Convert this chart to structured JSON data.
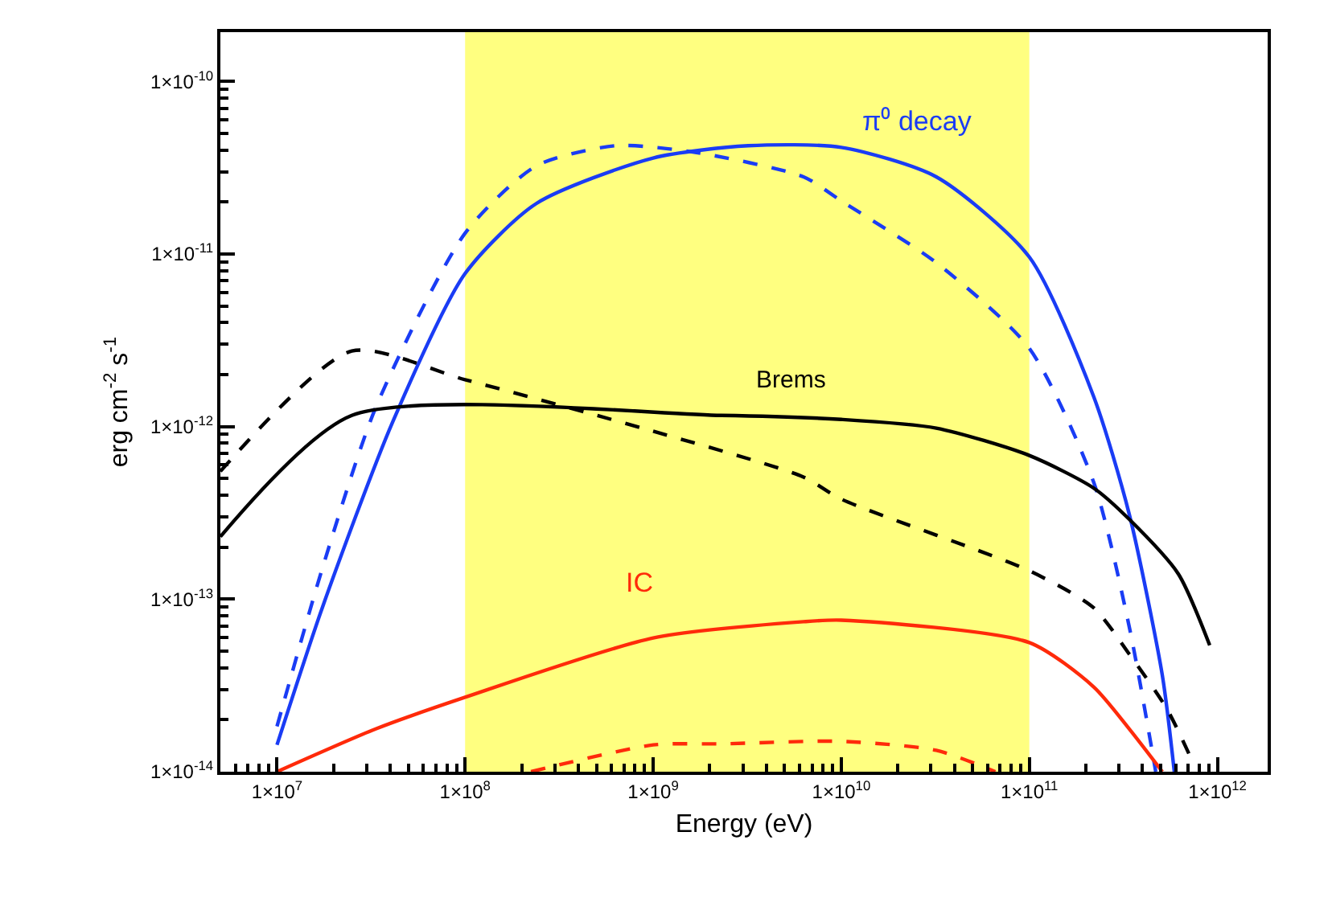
{
  "chart_data": {
    "type": "line",
    "xlabel": "Energy (eV)",
    "ylabel": "erg cm$^{-2}$ s$^{-1}$",
    "log": "xy",
    "grid": false,
    "legend": false,
    "marker": "none",
    "xlim": [
      5000000.0,
      1850000000000.0
    ],
    "ylim": [
      1e-14,
      1.93e-10
    ],
    "xticks": [
      {
        "value": 10000000.0,
        "label": "1×10$^{7}$"
      },
      {
        "value": 100000000.0,
        "label": "1×10$^{8}$"
      },
      {
        "value": 1000000000.0,
        "label": "1×10$^{9}$"
      },
      {
        "value": 10000000000.0,
        "label": "1×10$^{10}$"
      },
      {
        "value": 100000000000.0,
        "label": "1×10$^{11}$"
      },
      {
        "value": 1000000000000.0,
        "label": "1×10$^{12}$"
      }
    ],
    "yticks": [
      {
        "value": 1e-14,
        "label": "1×10$^{-14}$"
      },
      {
        "value": 1e-13,
        "label": "1×10$^{-13}$"
      },
      {
        "value": 1e-12,
        "label": "1×10$^{-12}$"
      },
      {
        "value": 1e-11,
        "label": "1×10$^{-11}$"
      },
      {
        "value": 1e-10,
        "label": "1×10$^{-10}$"
      }
    ],
    "bands": [
      {
        "axis": "x",
        "from": 100000000.0,
        "to": 100000000000.0,
        "color": "#ffff80"
      }
    ],
    "series": [
      {
        "name": "π⁰ decay",
        "color": "#1a3cf5",
        "line_style": "solid",
        "x": [
          10000000.0,
          17400000.0,
          41000000.0,
          100000000.0,
          239000000.0,
          1000000000.0,
          3200000000.0,
          10000000000.0,
          32000000000.0,
          100000000000.0,
          220000000000.0,
          340000000000.0,
          510000000000.0,
          590000000000.0
        ],
        "values": [
          1.43e-14,
          8.9e-14,
          1.05e-12,
          7.7e-12,
          1.96e-11,
          3.6e-11,
          4.24e-11,
          4.15e-11,
          2.8e-11,
          9.6e-12,
          1.49e-12,
          3.1e-13,
          3.6e-14,
          1e-14
        ]
      },
      {
        "color": "#1a3cf5",
        "line_style": "dashed",
        "x": [
          10000000.0,
          17400000.0,
          33500000.0,
          100000000.0,
          239000000.0,
          630000000.0,
          1700000000.0,
          6300000000.0,
          10000000000.0,
          32000000000.0,
          100000000000.0,
          220000000000.0,
          340000000000.0,
          470000000000.0
        ],
        "values": [
          1.83e-14,
          1.5e-13,
          1.29e-12,
          1.32e-11,
          3.24e-11,
          4.24e-11,
          3.87e-11,
          2.8e-11,
          2.03e-11,
          8.9e-12,
          2.84e-12,
          4.75e-13,
          6.9e-14,
          1e-14
        ]
      },
      {
        "name": "Brems",
        "color": "#000000",
        "line_style": "solid",
        "x": [
          5000000.0,
          25000000.0,
          2300000000.0,
          10000000000.0,
          32000000000.0,
          100000000000.0,
          220000000000.0,
          340000000000.0,
          620000000000.0,
          910000000000.0
        ],
        "values": [
          2.3e-13,
          1.16e-12,
          1.16e-12,
          1.1e-12,
          9.8e-13,
          6.8e-13,
          4.4e-13,
          2.9e-13,
          1.4e-13,
          5.4e-14
        ]
      },
      {
        "color": "#000000",
        "line_style": "dashed",
        "x": [
          5000000.0,
          25000000.0,
          100000000.0,
          1000000000.0,
          6300000000.0,
          10000000000.0,
          100000000000.0,
          220000000000.0,
          340000000000.0,
          540000000000.0,
          750000000000.0
        ],
        "values": [
          5.5e-13,
          2.74e-12,
          1.87e-12,
          9.4e-13,
          5.1e-13,
          3.8e-13,
          1.46e-13,
          8.9e-14,
          4.8e-14,
          2.3e-14,
          1.1e-14
        ]
      },
      {
        "name": "IC",
        "color": "#ff2a0a",
        "line_style": "solid",
        "x": [
          10000000.0,
          33500000.0,
          100000000.0,
          1000000000.0,
          6300000000.0,
          10000000000.0,
          100000000000.0,
          220000000000.0,
          340000000000.0,
          510000000000.0
        ],
        "values": [
          1e-14,
          1.77e-14,
          2.7e-14,
          5.96e-14,
          7.4e-14,
          7.55e-14,
          5.6e-14,
          3.1e-14,
          1.77e-14,
          1e-14
        ]
      },
      {
        "color": "#ff2a0a",
        "line_style": "dashed",
        "x": [
          224000000.0,
          1000000000.0,
          2300000000.0,
          10000000000.0,
          32000000000.0,
          66000000000.0
        ],
        "values": [
          1e-14,
          1.43e-14,
          1.45e-14,
          1.5e-14,
          1.33e-14,
          1e-14
        ]
      }
    ]
  }
}
